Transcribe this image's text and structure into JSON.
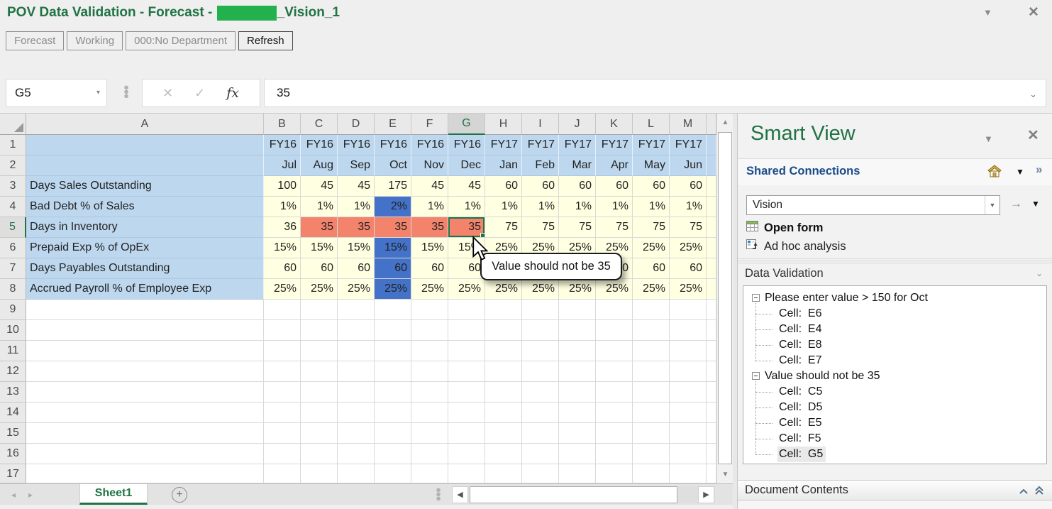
{
  "window": {
    "title_prefix": "POV Data Validation - Forecast - ",
    "title_suffix": "_Vision_1",
    "dropdown_icon": "▼",
    "close_icon": "✕"
  },
  "toolbar": {
    "buttons": [
      {
        "label": "Forecast",
        "enabled": false
      },
      {
        "label": "Working",
        "enabled": false
      },
      {
        "label": "000:No Department",
        "enabled": false
      },
      {
        "label": "Refresh",
        "enabled": true
      }
    ]
  },
  "formula_bar": {
    "name_box": "G5",
    "cancel_icon": "✕",
    "enter_icon": "✓",
    "fx_label": "fx",
    "value": "35"
  },
  "grid": {
    "selected_cell": "G5",
    "selected_column": "G",
    "selected_row": 5,
    "columns": [
      "A",
      "B",
      "C",
      "D",
      "E",
      "F",
      "G",
      "H",
      "I",
      "J",
      "K",
      "L",
      "M"
    ],
    "visible_rows": 17,
    "rows": [
      {
        "num": 1,
        "label": "",
        "values": [
          "FY16",
          "FY16",
          "FY16",
          "FY16",
          "FY16",
          "FY16",
          "FY17",
          "FY17",
          "FY17",
          "FY17",
          "FY17",
          "FY17"
        ]
      },
      {
        "num": 2,
        "label": "",
        "values": [
          "Jul",
          "Aug",
          "Sep",
          "Oct",
          "Nov",
          "Dec",
          "Jan",
          "Feb",
          "Mar",
          "Apr",
          "May",
          "Jun"
        ]
      },
      {
        "num": 3,
        "label": "Days Sales Outstanding",
        "values": [
          "100",
          "45",
          "45",
          "175",
          "45",
          "45",
          "60",
          "60",
          "60",
          "60",
          "60",
          "60"
        ]
      },
      {
        "num": 4,
        "label": "Bad Debt % of Sales",
        "values": [
          "1%",
          "1%",
          "1%",
          "2%",
          "1%",
          "1%",
          "1%",
          "1%",
          "1%",
          "1%",
          "1%",
          "1%"
        ]
      },
      {
        "num": 5,
        "label": "Days in Inventory",
        "values": [
          "36",
          "35",
          "35",
          "35",
          "35",
          "35",
          "75",
          "75",
          "75",
          "75",
          "75",
          "75"
        ]
      },
      {
        "num": 6,
        "label": "Prepaid Exp % of OpEx",
        "values": [
          "15%",
          "15%",
          "15%",
          "15%",
          "15%",
          "15%",
          "25%",
          "25%",
          "25%",
          "25%",
          "25%",
          "25%"
        ]
      },
      {
        "num": 7,
        "label": "Days Payables Outstanding",
        "values": [
          "60",
          "60",
          "60",
          "60",
          "60",
          "60",
          "60",
          "60",
          "60",
          "60",
          "60",
          "60"
        ]
      },
      {
        "num": 8,
        "label": "Accrued Payroll % of Employee Exp",
        "values": [
          "25%",
          "25%",
          "25%",
          "25%",
          "25%",
          "25%",
          "25%",
          "25%",
          "25%",
          "25%",
          "25%",
          "25%"
        ]
      }
    ],
    "highlight": {
      "blue_cells": [
        "E4",
        "E6",
        "E7",
        "E8"
      ],
      "orange_cells": [
        "C5",
        "D5",
        "E5",
        "F5",
        "G5"
      ]
    },
    "colors": {
      "header_fill": "#BDD7EE",
      "data_fill": "#FFFFE1",
      "validation_blue": "#4472C9",
      "validation_orange": "#F4836C",
      "selection_green": "#217346"
    }
  },
  "tooltip": {
    "text": "Value should not be 35"
  },
  "sheet_bar": {
    "tab": "Sheet1",
    "add_icon": "+",
    "prev_icon": "◂",
    "next_icon": "▸"
  },
  "panel": {
    "title": "Smart View",
    "title_color": "#217346",
    "dropdown_icon": "▼",
    "close_icon": "✕",
    "shared_connections": {
      "label": "Shared Connections",
      "more_icon": "»"
    },
    "connection_select": {
      "value": "Vision"
    },
    "go_icon": "→",
    "actions": [
      {
        "label": "Open form"
      },
      {
        "label": "Ad hoc analysis"
      }
    ],
    "data_validation": {
      "title": "Data Validation",
      "cell_prefix": "Cell:",
      "groups": [
        {
          "label": "Please enter value > 150 for Oct",
          "cells": [
            "E6",
            "E4",
            "E8",
            "E7"
          ],
          "selected_cell": ""
        },
        {
          "label": "Value should not be 35",
          "cells": [
            "C5",
            "D5",
            "E5",
            "F5",
            "G5"
          ],
          "selected_cell": "G5"
        }
      ]
    },
    "document_contents": {
      "title": "Document Contents"
    }
  }
}
